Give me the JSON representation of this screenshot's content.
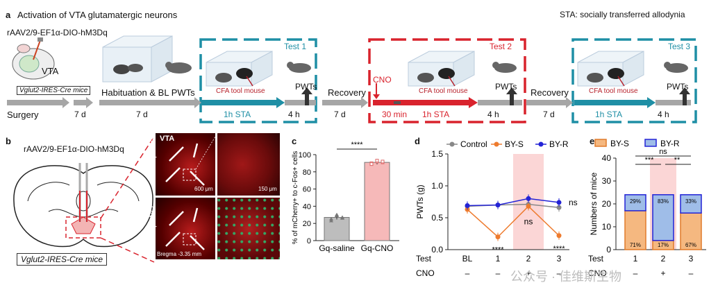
{
  "panel_a": {
    "letter": "a",
    "title": "Activation of VTA glutamatergic neurons",
    "sta_note": "STA: socially transferred allodynia",
    "virus": "rAAV2/9-EF1α-DIO-hM3Dq",
    "brain_label": "VTA",
    "mouse_line": "Vglut2-IRES-Cre mice",
    "surgery": "Surgery",
    "habituation": "Habituation & BL PWTs",
    "test1": "Test 1",
    "test2": "Test 2",
    "test3": "Test 3",
    "cno": "CNO",
    "cfa_tool_mouse": "CFA tool mouse",
    "pwts": "PWTs",
    "recovery": "Recovery",
    "timeline": {
      "seven_d": "7 d",
      "thirty_min": "30 min",
      "one_h_sta": "1h STA",
      "four_h": "4 h"
    },
    "colors": {
      "teal": "#1f8fa5",
      "red": "#d9232d",
      "grey": "#a6a6a6"
    }
  },
  "panel_b": {
    "letter": "b",
    "virus": "rAAV2/9-EF1α-DIO-hM3Dq",
    "mouse_line": "Vglut2-IRES-Cre mice",
    "vta": "VTA",
    "gq_saline": "Gq-saline",
    "gq_cno": "Gq-CNO",
    "scale_600": "600 μm",
    "scale_150": "150 μm",
    "bregma": "Bregma -3.35 mm"
  },
  "panel_c": {
    "letter": "c",
    "chart_data": {
      "type": "bar",
      "categories": [
        "Gq-saline",
        "Gq-CNO"
      ],
      "values": [
        27,
        91
      ],
      "points": [
        [
          25,
          30,
          27,
          23,
          29,
          26
        ],
        [
          90,
          92,
          91,
          89,
          93,
          92
        ]
      ],
      "ylabel": "% of mCherry+ to c-Fos+ cells",
      "ylim": [
        0,
        100
      ],
      "yticks": [
        "0",
        "20",
        "40",
        "60",
        "80",
        "100"
      ],
      "significance": "****",
      "colors": [
        "#bdbdbd",
        "#f6b9b9"
      ]
    }
  },
  "panel_d": {
    "letter": "d",
    "chart_data": {
      "type": "line",
      "x": [
        "BL",
        "1",
        "2",
        "3"
      ],
      "series": [
        {
          "name": "Control",
          "values": [
            0.68,
            0.7,
            0.71,
            0.66
          ],
          "color": "#888888"
        },
        {
          "name": "BY-S",
          "values": [
            0.63,
            0.2,
            0.68,
            0.22
          ],
          "color": "#ee7b2e"
        },
        {
          "name": "BY-R",
          "values": [
            0.69,
            0.7,
            0.8,
            0.74
          ],
          "color": "#2323d6"
        }
      ],
      "ylabel": "PWTs (g)",
      "ylim": [
        0,
        1.5
      ],
      "yticks": [
        "0.0",
        "0.5",
        "1.0",
        "1.5"
      ],
      "row_test": "Test",
      "row_cno": "CNO",
      "cno_values": [
        "–",
        "–",
        "+",
        "–"
      ],
      "annotations": [
        "****",
        "ns",
        "****",
        "ns"
      ]
    }
  },
  "panel_e": {
    "letter": "e",
    "chart_data": {
      "type": "bar",
      "stacked": true,
      "categories": [
        "1",
        "2",
        "3"
      ],
      "series": [
        {
          "name": "BY-S",
          "values": [
            17,
            4,
            16
          ],
          "color": "#f5b880"
        },
        {
          "name": "BY-R",
          "values": [
            7,
            20,
            8
          ],
          "color": "#9fbde8"
        }
      ],
      "percent_labels_bottom": [
        "71%",
        "17%",
        "67%"
      ],
      "percent_labels_top": [
        "29%",
        "83%",
        "33%"
      ],
      "ylabel": "Numbers of mice",
      "ylim": [
        0,
        40
      ],
      "yticks": [
        "0",
        "10",
        "20",
        "30",
        "40"
      ],
      "row_test": "Test",
      "row_cno": "CNO",
      "cno_values": [
        "–",
        "+",
        "–"
      ],
      "significance": [
        "ns",
        "***",
        "**"
      ]
    }
  },
  "watermark": "公众号 · 佳维斯生物"
}
